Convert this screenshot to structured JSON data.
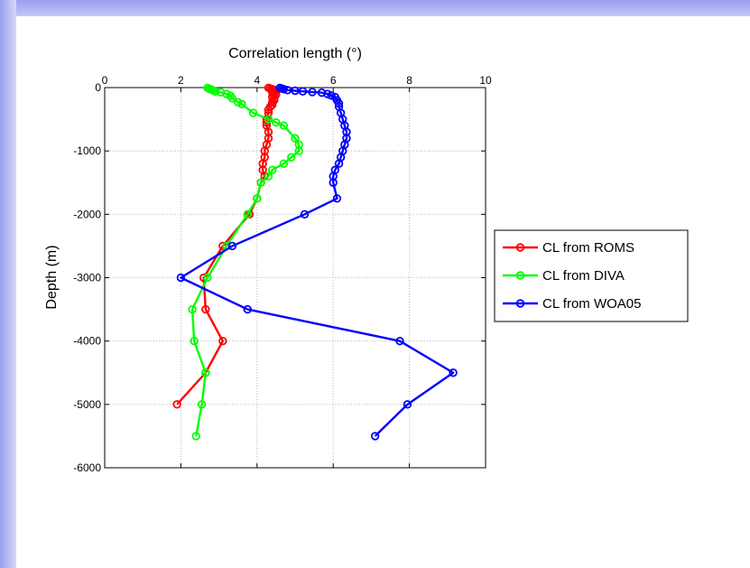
{
  "chart_data": {
    "type": "line",
    "title": "",
    "xlabel": "Correlation length (°)",
    "ylabel": "Depth (m)",
    "xlim": [
      0,
      10
    ],
    "ylim": [
      -6000,
      0
    ],
    "x_axis_position": "top",
    "grid": true,
    "legend_position": "outside-right",
    "x_ticks": [
      0,
      2,
      4,
      6,
      8,
      10
    ],
    "y_ticks": [
      0,
      -1000,
      -2000,
      -3000,
      -4000,
      -5000,
      -6000
    ],
    "x_tick_labels": [
      "0",
      "2",
      "4",
      "6",
      "8",
      "10"
    ],
    "y_tick_labels": [
      "0",
      "-1000",
      "-2000",
      "-3000",
      "-4000",
      "-5000",
      "-6000"
    ],
    "series": [
      {
        "name": "CL from ROMS",
        "color": "#ff0000",
        "marker": "circle",
        "points": [
          [
            4.3,
            -5
          ],
          [
            4.35,
            -15
          ],
          [
            4.4,
            -25
          ],
          [
            4.45,
            -35
          ],
          [
            4.5,
            -50
          ],
          [
            4.45,
            -65
          ],
          [
            4.4,
            -80
          ],
          [
            4.45,
            -95
          ],
          [
            4.5,
            -110
          ],
          [
            4.45,
            -130
          ],
          [
            4.4,
            -150
          ],
          [
            4.45,
            -175
          ],
          [
            4.45,
            -200
          ],
          [
            4.4,
            -230
          ],
          [
            4.4,
            -270
          ],
          [
            4.35,
            -300
          ],
          [
            4.3,
            -350
          ],
          [
            4.3,
            -400
          ],
          [
            4.25,
            -500
          ],
          [
            4.25,
            -550
          ],
          [
            4.25,
            -600
          ],
          [
            4.3,
            -700
          ],
          [
            4.3,
            -800
          ],
          [
            4.25,
            -900
          ],
          [
            4.2,
            -1000
          ],
          [
            4.2,
            -1100
          ],
          [
            4.15,
            -1200
          ],
          [
            4.15,
            -1300
          ],
          [
            4.2,
            -1400
          ],
          [
            4.1,
            -1500
          ],
          [
            4.0,
            -1750
          ],
          [
            3.8,
            -2000
          ],
          [
            3.1,
            -2500
          ],
          [
            2.6,
            -3000
          ],
          [
            2.65,
            -3500
          ],
          [
            3.1,
            -4000
          ],
          [
            2.65,
            -4500
          ],
          [
            1.9,
            -5000
          ]
        ]
      },
      {
        "name": "CL from DIVA",
        "color": "#00ff00",
        "marker": "circle",
        "points": [
          [
            2.7,
            -5
          ],
          [
            2.75,
            -20
          ],
          [
            2.8,
            -30
          ],
          [
            2.85,
            -45
          ],
          [
            2.9,
            -60
          ],
          [
            3.05,
            -75
          ],
          [
            3.2,
            -100
          ],
          [
            3.3,
            -130
          ],
          [
            3.35,
            -170
          ],
          [
            3.5,
            -230
          ],
          [
            3.6,
            -260
          ],
          [
            3.9,
            -400
          ],
          [
            4.3,
            -500
          ],
          [
            4.5,
            -550
          ],
          [
            4.7,
            -600
          ],
          [
            5.0,
            -800
          ],
          [
            5.1,
            -900
          ],
          [
            5.1,
            -1000
          ],
          [
            4.9,
            -1100
          ],
          [
            4.7,
            -1200
          ],
          [
            4.4,
            -1300
          ],
          [
            4.3,
            -1400
          ],
          [
            4.1,
            -1500
          ],
          [
            4.0,
            -1750
          ],
          [
            3.75,
            -2000
          ],
          [
            3.2,
            -2500
          ],
          [
            2.7,
            -3000
          ],
          [
            2.3,
            -3500
          ],
          [
            2.35,
            -4000
          ],
          [
            2.65,
            -4500
          ],
          [
            2.55,
            -5000
          ],
          [
            2.4,
            -5500
          ]
        ]
      },
      {
        "name": "CL from WOA05",
        "color": "#0000ff",
        "marker": "circle",
        "points": [
          [
            4.6,
            -5
          ],
          [
            4.65,
            -15
          ],
          [
            4.7,
            -25
          ],
          [
            4.8,
            -40
          ],
          [
            5.0,
            -50
          ],
          [
            5.2,
            -60
          ],
          [
            5.45,
            -70
          ],
          [
            5.7,
            -80
          ],
          [
            5.85,
            -100
          ],
          [
            5.95,
            -125
          ],
          [
            6.05,
            -150
          ],
          [
            6.1,
            -200
          ],
          [
            6.15,
            -250
          ],
          [
            6.15,
            -300
          ],
          [
            6.2,
            -400
          ],
          [
            6.25,
            -500
          ],
          [
            6.3,
            -600
          ],
          [
            6.35,
            -700
          ],
          [
            6.35,
            -800
          ],
          [
            6.3,
            -900
          ],
          [
            6.25,
            -1000
          ],
          [
            6.2,
            -1100
          ],
          [
            6.15,
            -1200
          ],
          [
            6.05,
            -1300
          ],
          [
            6.0,
            -1400
          ],
          [
            6.0,
            -1500
          ],
          [
            6.1,
            -1750
          ],
          [
            5.25,
            -2000
          ],
          [
            3.35,
            -2500
          ],
          [
            2.0,
            -3000
          ],
          [
            3.75,
            -3500
          ],
          [
            7.75,
            -4000
          ],
          [
            9.15,
            -4500
          ],
          [
            7.95,
            -5000
          ],
          [
            7.1,
            -5500
          ]
        ]
      }
    ]
  }
}
